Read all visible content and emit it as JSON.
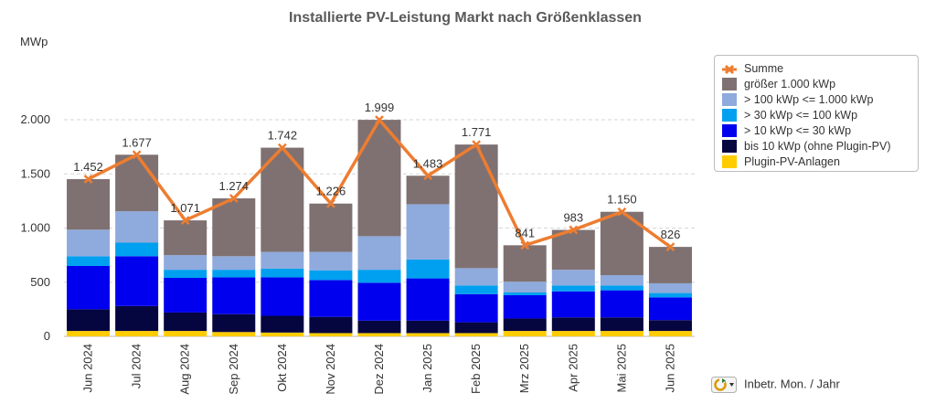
{
  "colors": {
    "plugin": "#FFCC00",
    "bis10": "#050540",
    "s10_30": "#0000EE",
    "s30_100": "#00A0F0",
    "s100_1000": "#8FAADC",
    "gross": "#7F7171",
    "sum_line": "#ED7D31"
  },
  "footer": {
    "label": "Inbetr. Mon. / Jahr",
    "icon": "refresh-dropdown-icon"
  },
  "chart_data": {
    "type": "bar",
    "stacked": true,
    "title": "Installierte PV-Leistung Markt nach Größenklassen",
    "ylabel": "MWp",
    "ylim": [
      0,
      2000
    ],
    "yticks": [
      0,
      500,
      1000,
      1500,
      2000
    ],
    "ytick_labels": [
      "0",
      "500",
      "1.000",
      "1.500",
      "2.000"
    ],
    "grid": true,
    "legend_position": "right",
    "categories": [
      "Jun 2024",
      "Jul 2024",
      "Aug 2024",
      "Sep 2024",
      "Okt 2024",
      "Nov 2024",
      "Dez 2024",
      "Jan 2025",
      "Feb 2025",
      "Mrz 2025",
      "Apr 2025",
      "Mai 2025",
      "Jun 2025"
    ],
    "series": [
      {
        "name": "Plugin-PV-Anlagen",
        "values": [
          50,
          50,
          50,
          40,
          35,
          30,
          30,
          30,
          30,
          50,
          50,
          50,
          50
        ]
      },
      {
        "name": "bis 10 kWp (ohne Plugin-PV)",
        "values": [
          200,
          230,
          170,
          165,
          155,
          150,
          115,
          115,
          100,
          115,
          125,
          125,
          100
        ]
      },
      {
        "name": "> 10 kWp <= 30 kWp",
        "values": [
          400,
          460,
          320,
          340,
          355,
          340,
          350,
          390,
          260,
          215,
          240,
          250,
          210
        ]
      },
      {
        "name": "> 30 kWp <= 100 kWp",
        "values": [
          90,
          125,
          75,
          70,
          80,
          90,
          120,
          175,
          80,
          25,
          55,
          45,
          40
        ]
      },
      {
        "name": "> 100 kWp <= 1.000 kWp",
        "values": [
          245,
          290,
          135,
          125,
          155,
          170,
          310,
          510,
          160,
          100,
          145,
          95,
          90
        ]
      },
      {
        "name": "größer 1.000 kWp",
        "values": [
          467,
          522,
          321,
          534,
          962,
          446,
          1074,
          263,
          1141,
          336,
          368,
          585,
          336
        ]
      }
    ],
    "line_series": {
      "name": "Summe",
      "values": [
        1452,
        1677,
        1071,
        1274,
        1742,
        1226,
        1999,
        1483,
        1771,
        841,
        983,
        1150,
        826
      ],
      "labels": [
        "1.452",
        "1.677",
        "1.071",
        "1.274",
        "1.742",
        "1.226",
        "1.999",
        "1.483",
        "1.771",
        "841",
        "983",
        "1.150",
        "826"
      ]
    },
    "legend_order": [
      "Summe",
      "größer 1.000 kWp",
      "> 100 kWp <= 1.000 kWp",
      "> 30 kWp <= 100 kWp",
      "> 10 kWp <= 30 kWp",
      "bis 10 kWp (ohne Plugin-PV)",
      "Plugin-PV-Anlagen"
    ]
  }
}
